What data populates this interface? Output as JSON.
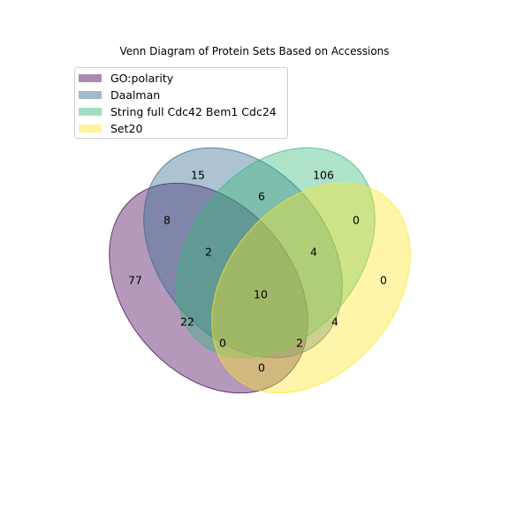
{
  "title": "Venn Diagram of Protein Sets Based on Accessions",
  "sets": [
    {
      "name": "GO:polarity",
      "fill": "#440154",
      "stroke": "#440154"
    },
    {
      "name": "Daalman",
      "fill": "#31688e",
      "stroke": "#31688e"
    },
    {
      "name": "String full Cdc42 Bem1 Cdc24",
      "fill": "#35b779",
      "stroke": "#35b779"
    },
    {
      "name": "Set20",
      "fill": "#fde725",
      "stroke": "#fde725"
    }
  ],
  "regions": [
    {
      "id": "daalman-only",
      "value": "15"
    },
    {
      "id": "string-only",
      "value": "106"
    },
    {
      "id": "daalman-string",
      "value": "6"
    },
    {
      "id": "go-daalman",
      "value": "8"
    },
    {
      "id": "string-set20",
      "value": "0"
    },
    {
      "id": "go-daalman-string",
      "value": "2"
    },
    {
      "id": "daalman-string-set20",
      "value": "4"
    },
    {
      "id": "go-only",
      "value": "77"
    },
    {
      "id": "set20-only",
      "value": "0"
    },
    {
      "id": "all-four",
      "value": "10"
    },
    {
      "id": "go-string",
      "value": "22"
    },
    {
      "id": "daalman-set20",
      "value": "4"
    },
    {
      "id": "go-string-set20",
      "value": "0"
    },
    {
      "id": "go-daalman-set20",
      "value": "2"
    },
    {
      "id": "go-set20",
      "value": "0"
    }
  ]
}
